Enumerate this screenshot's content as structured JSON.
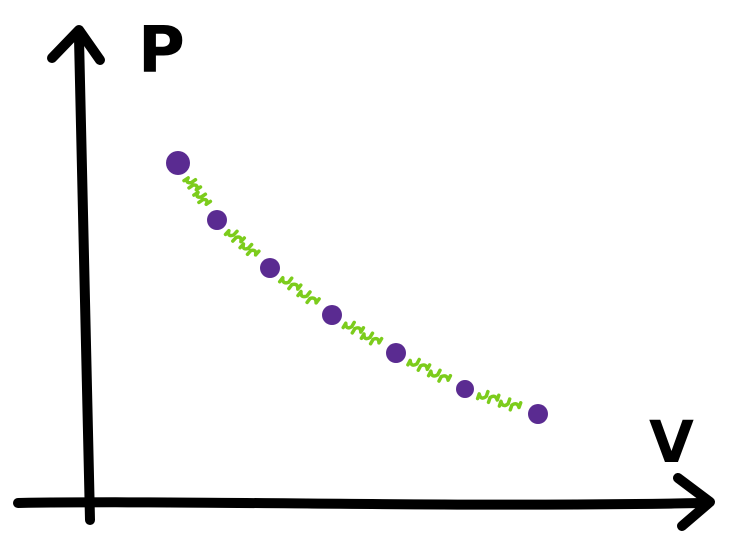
{
  "diagram": {
    "y_axis_label": "P",
    "x_axis_label": "V",
    "colors": {
      "axes": "#000000",
      "points": "#5a2b91",
      "connectors": "#7ccc1c"
    },
    "points_count": 7,
    "connectors_count": 6
  }
}
